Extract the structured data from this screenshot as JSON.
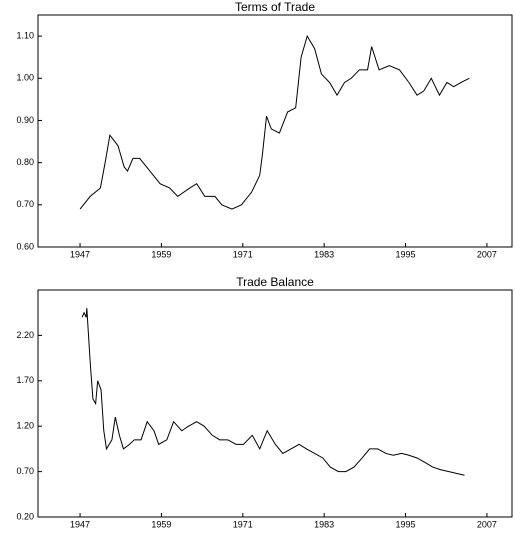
{
  "chart_data": [
    {
      "type": "line",
      "title": "Terms of Trade",
      "x": [
        1947,
        1948.5,
        1950,
        1950.7,
        1951.4,
        1952.6,
        1953.5,
        1954,
        1954.8,
        1955.8,
        1957.3,
        1958.8,
        1960.2,
        1961.4,
        1963.2,
        1964.2,
        1965.4,
        1966.9,
        1967.9,
        1969.4,
        1970.8,
        1972.3,
        1973.5,
        1973.9,
        1974.5,
        1975.2,
        1976.4,
        1977.6,
        1978.8,
        1979.6,
        1980.5,
        1981.6,
        1982.6,
        1983.8,
        1984.9,
        1986,
        1987,
        1988.2,
        1989.4,
        1990,
        1991.1,
        1992.6,
        1994.1,
        1995.5,
        1996.7,
        1997.7,
        1998.8,
        2000,
        2001.1,
        2002.1,
        2003.2,
        2004.4
      ],
      "values": [
        0.69,
        0.72,
        0.74,
        0.8,
        0.865,
        0.84,
        0.79,
        0.78,
        0.81,
        0.81,
        0.78,
        0.75,
        0.74,
        0.72,
        0.74,
        0.75,
        0.72,
        0.72,
        0.7,
        0.69,
        0.7,
        0.73,
        0.77,
        0.82,
        0.91,
        0.88,
        0.87,
        0.92,
        0.93,
        1.05,
        1.1,
        1.07,
        1.01,
        0.99,
        0.96,
        0.99,
        1.0,
        1.02,
        1.02,
        1.075,
        1.02,
        1.03,
        1.02,
        0.99,
        0.96,
        0.97,
        1.0,
        0.96,
        0.99,
        0.98,
        0.99,
        1.0
      ],
      "color": "#000000",
      "xlim": [
        1940.8,
        2010.7
      ],
      "xticks": [
        1947,
        1959,
        1971,
        1983,
        1995,
        2007
      ],
      "ylim": [
        0.6,
        1.15
      ],
      "yticks": [
        {
          "value": 0.6,
          "label": "0.60"
        },
        {
          "value": 0.7,
          "label": "0.70"
        },
        {
          "value": 0.8,
          "label": "0.80"
        },
        {
          "value": 0.9,
          "label": "0.90"
        },
        {
          "value": 1.0,
          "label": "1.00"
        },
        {
          "value": 1.1,
          "label": "1.10"
        }
      ]
    },
    {
      "type": "line",
      "title": "Trade Balance",
      "x": [
        1947.3,
        1947.6,
        1947.9,
        1948,
        1948.5,
        1948.9,
        1949.3,
        1949.6,
        1950.1,
        1950.5,
        1950.9,
        1951.7,
        1952.2,
        1952.8,
        1953.4,
        1954.3,
        1955,
        1956,
        1956.9,
        1957.9,
        1958.6,
        1959.8,
        1960.8,
        1962,
        1963,
        1964.2,
        1965.3,
        1966.5,
        1967.6,
        1968.8,
        1970,
        1971.1,
        1972.4,
        1973.5,
        1974.6,
        1975.8,
        1976.9,
        1978.1,
        1979.3,
        1980.4,
        1981.6,
        1982.8,
        1983.9,
        1985.1,
        1986.2,
        1987.4,
        1988.6,
        1989.7,
        1990.9,
        1992.1,
        1993.2,
        1994.4,
        1995.5,
        1996.7,
        1997.9,
        1999,
        2000.2,
        2001.4,
        2002.5,
        2003.7
      ],
      "values": [
        2.4,
        2.45,
        2.4,
        2.5,
        1.9,
        1.5,
        1.45,
        1.7,
        1.6,
        1.15,
        0.95,
        1.05,
        1.3,
        1.1,
        0.95,
        1.0,
        1.05,
        1.05,
        1.25,
        1.15,
        1.0,
        1.05,
        1.25,
        1.15,
        1.2,
        1.25,
        1.2,
        1.1,
        1.05,
        1.05,
        1.0,
        1.0,
        1.1,
        0.95,
        1.15,
        1.0,
        0.9,
        0.95,
        1.0,
        0.95,
        0.9,
        0.85,
        0.75,
        0.7,
        0.7,
        0.75,
        0.85,
        0.95,
        0.95,
        0.9,
        0.88,
        0.9,
        0.88,
        0.85,
        0.8,
        0.75,
        0.72,
        0.7,
        0.68,
        0.66
      ],
      "color": "#000000",
      "xlim": [
        1940.8,
        2010.7
      ],
      "xticks": [
        1947,
        1959,
        1971,
        1983,
        1995,
        2007
      ],
      "ylim": [
        0.2,
        2.7
      ],
      "yticks": [
        {
          "value": 0.2,
          "label": "0.20"
        },
        {
          "value": 0.7,
          "label": "0.70"
        },
        {
          "value": 1.2,
          "label": "1.20"
        },
        {
          "value": 1.7,
          "label": "1.70"
        },
        {
          "value": 2.2,
          "label": "2.20"
        }
      ]
    }
  ]
}
